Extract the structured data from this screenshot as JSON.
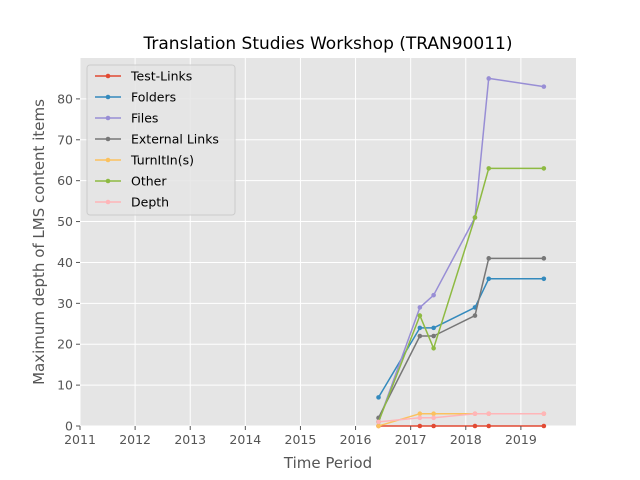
{
  "chart_data": {
    "type": "line",
    "title": "Translation Studies Workshop (TRAN90011)",
    "xlabel": "Time Period",
    "ylabel": "Maximum depth of LMS content items",
    "xlim": [
      2011,
      2020
    ],
    "ylim": [
      0,
      90
    ],
    "x_ticks": [
      "2011",
      "2012",
      "2013",
      "2014",
      "2015",
      "2016",
      "2017",
      "2018",
      "2019"
    ],
    "y_ticks": [
      "0",
      "10",
      "20",
      "30",
      "40",
      "50",
      "60",
      "70",
      "80"
    ],
    "grid": true,
    "legend_position": "top-left",
    "x": [
      "2016-06",
      "2017-03",
      "2017-06",
      "2018-03",
      "2018-06",
      "2019-06"
    ],
    "series": [
      {
        "name": "Test-Links",
        "color": "#e24a33",
        "values": [
          0,
          0,
          0,
          0,
          0,
          0
        ]
      },
      {
        "name": "Folders",
        "color": "#348abd",
        "values": [
          7,
          24,
          24,
          29,
          36,
          36
        ]
      },
      {
        "name": "Files",
        "color": "#988ed5",
        "values": [
          1,
          29,
          32,
          51,
          85,
          83
        ]
      },
      {
        "name": "External Links",
        "color": "#777777",
        "values": [
          2,
          22,
          22,
          27,
          41,
          41
        ]
      },
      {
        "name": "TurnItIn(s)",
        "color": "#fbc15e",
        "values": [
          0,
          3,
          3,
          3,
          3,
          3
        ]
      },
      {
        "name": "Other",
        "color": "#8eba42",
        "values": [
          1,
          27,
          19,
          51,
          63,
          63
        ]
      },
      {
        "name": "Depth",
        "color": "#ffb5b8",
        "values": [
          1,
          2,
          2,
          3,
          3,
          3
        ]
      }
    ]
  }
}
